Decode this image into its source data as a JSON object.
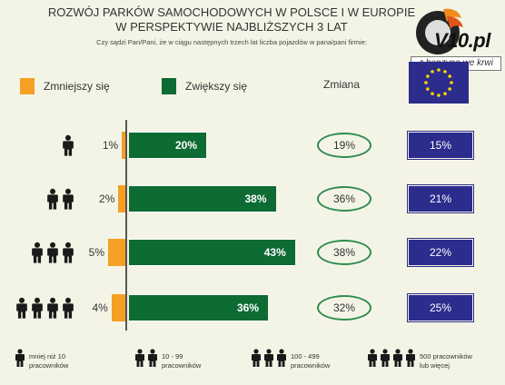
{
  "header": {
    "title_line1": "ROZWÓJ PARKÓW SAMOCHODOWYCH W POLSCE I W EUROPIE",
    "title_line2": "W PERSPEKTYWIE NAJBLIŻSZYCH 3 LAT",
    "subtitle": "Czy sądzi Pan/Pani, że w ciągu następnych trzech lat liczba pojazdów w pana/pani firmie:"
  },
  "logo": {
    "text": "V10.pl",
    "banner": "z benzyną we krwi"
  },
  "legend": {
    "decrease_label": "Zmniejszy się",
    "increase_label": "Zwiększy się",
    "change_label": "Zmiana"
  },
  "colors": {
    "decrease": "#f5a023",
    "increase": "#0d6b34",
    "change_oval": "#2e8c4e",
    "europe": "#2b2c8c"
  },
  "chart_data": {
    "type": "bar",
    "categories": [
      "mniej niż 10 pracowników",
      "10 - 99 pracowników",
      "100 - 499 pracowników",
      "500 pracowników lub więcej"
    ],
    "series": [
      {
        "name": "Zmniejszy się",
        "values": [
          1,
          2,
          5,
          4
        ]
      },
      {
        "name": "Zwiększy się",
        "values": [
          20,
          38,
          43,
          36
        ]
      },
      {
        "name": "Zmiana",
        "values": [
          19,
          36,
          38,
          32
        ]
      }
    ],
    "europe_values": [
      15,
      21,
      22,
      25
    ],
    "value_labels": {
      "decrease": [
        "1%",
        "2%",
        "5%",
        "4%"
      ],
      "increase": [
        "20%",
        "38%",
        "43%",
        "36%"
      ],
      "change": [
        "19%",
        "36%",
        "38%",
        "32%"
      ],
      "europe": [
        "15%",
        "21%",
        "22%",
        "25%"
      ]
    },
    "people_counts": [
      1,
      2,
      3,
      4
    ]
  },
  "footer": {
    "items": [
      {
        "line1": "mniej niż 10",
        "line2": "pracowników"
      },
      {
        "line1": "10 - 99",
        "line2": "pracowników"
      },
      {
        "line1": "100 - 499",
        "line2": "pracowników"
      },
      {
        "line1": "500 pracowników",
        "line2": "lub więcej"
      }
    ]
  }
}
